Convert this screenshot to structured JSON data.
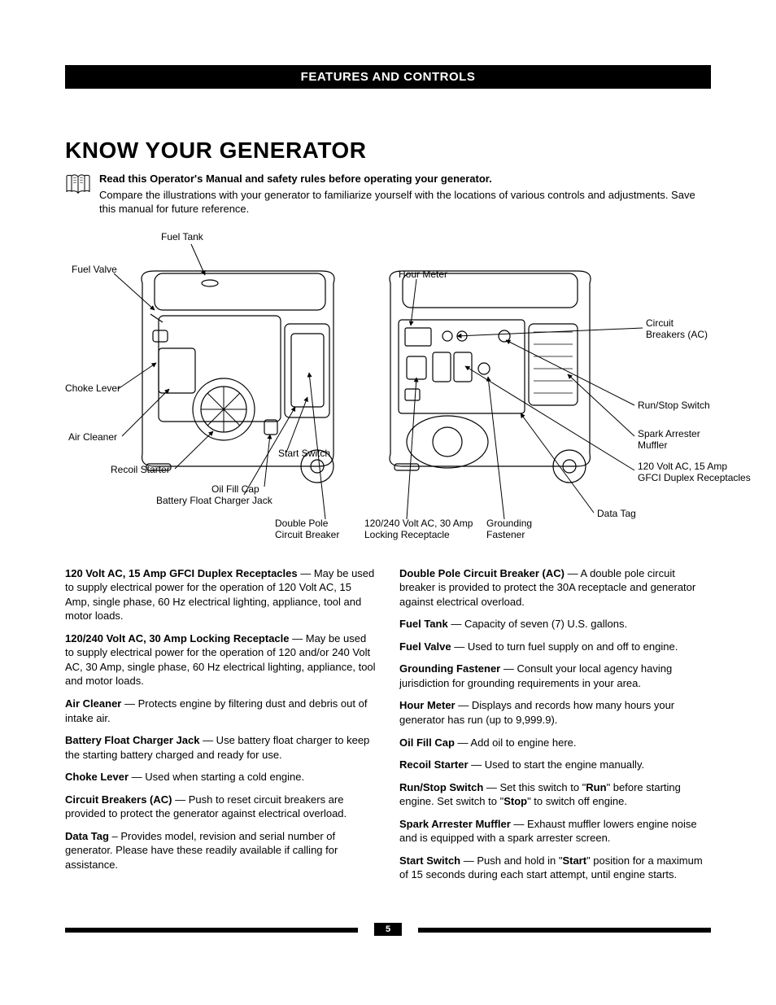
{
  "header": {
    "title": "FEATURES AND CONTROLS"
  },
  "heading": "KNOW YOUR GENERATOR",
  "intro": {
    "bold": "Read this Operator's Manual and safety rules before operating your generator.",
    "body": "Compare the illustrations with your generator to familiarize yourself with the locations of various controls and adjustments. Save this manual for future reference."
  },
  "callouts": {
    "fuel_tank": "Fuel Tank",
    "fuel_valve": "Fuel Valve",
    "choke_lever": "Choke Lever",
    "air_cleaner": "Air Cleaner",
    "recoil_starter": "Recoil Starter",
    "battery_jack": "Battery Float Charger Jack",
    "start_switch": "Start Switch",
    "oil_fill_cap": "Oil Fill Cap",
    "double_pole_breaker_l1": "Double Pole",
    "double_pole_breaker_l2": "Circuit Breaker",
    "hour_meter": "Hour Meter",
    "locking_receptacle_l1": "120/240 Volt AC, 30 Amp",
    "locking_receptacle_l2": "Locking Receptacle",
    "grounding_fastener_l1": "Grounding",
    "grounding_fastener_l2": "Fastener",
    "data_tag": "Data Tag",
    "gfci_l1": "120 Volt AC, 15 Amp",
    "gfci_l2": "GFCI Duplex Receptacles",
    "spark_arrester_l1": "Spark Arrester",
    "spark_arrester_l2": "Muffler",
    "run_stop_switch": "Run/Stop Switch",
    "circuit_breakers_l1": "Circuit",
    "circuit_breakers_l2": "Breakers (AC)"
  },
  "features_left": [
    {
      "term": "120 Volt AC, 15 Amp GFCI Duplex Receptacles",
      "desc": " — May be used to supply electrical power for the operation of 120 Volt AC, 15 Amp, single phase, 60 Hz electrical lighting, appliance, tool and motor loads."
    },
    {
      "term": "120/240 Volt AC, 30 Amp Locking Receptacle",
      "desc": " — May be used to supply electrical power for the operation of 120 and/or 240 Volt AC, 30 Amp, single phase, 60 Hz electrical lighting, appliance, tool and motor loads."
    },
    {
      "term": "Air Cleaner",
      "desc": " — Protects engine by filtering dust and debris out of intake air."
    },
    {
      "term": "Battery Float Charger Jack",
      "desc": " — Use battery float charger to keep the starting battery charged and ready for use."
    },
    {
      "term": "Choke Lever",
      "desc": " — Used when starting a cold engine."
    },
    {
      "term": "Circuit Breakers (AC)",
      "desc": " — Push to reset circuit breakers are provided to protect the generator against electrical overload."
    },
    {
      "term": "Data Tag",
      "desc": " – Provides model, revision and serial number of generator. Please have these readily available if calling for assistance."
    }
  ],
  "features_right": [
    {
      "term": "Double Pole Circuit Breaker (AC)",
      "desc": " — A double pole circuit breaker is provided to protect the 30A receptacle and generator against electrical overload."
    },
    {
      "term": "Fuel Tank",
      "desc": " — Capacity of seven (7) U.S. gallons."
    },
    {
      "term": "Fuel Valve",
      "desc": " — Used to turn fuel supply on and off to engine."
    },
    {
      "term": "Grounding Fastener",
      "desc": " — Consult your local agency having jurisdiction for grounding requirements in your area."
    },
    {
      "term": "Hour Meter",
      "desc": " — Displays and records how many hours your generator has run (up to 9,999.9)."
    },
    {
      "term": "Oil Fill Cap",
      "desc": " — Add oil to engine here."
    },
    {
      "term": "Recoil Starter",
      "desc": " — Used to start the engine manually."
    },
    {
      "term": "Run/Stop Switch",
      "desc_pre": " — Set this switch to \"",
      "bold1": "Run",
      "mid": "\" before starting engine. Set switch to \"",
      "bold2": "Stop",
      "desc_post": "\" to switch off engine."
    },
    {
      "term": "Spark Arrester Muffler",
      "desc": " — Exhaust muffler lowers engine noise and is equipped with a spark arrester screen."
    },
    {
      "term": "Start Switch",
      "desc_pre": " — Push and hold in \"",
      "bold1": "Start",
      "desc_post": "\" position for a maximum of 15 seconds during each start attempt, until engine starts."
    }
  ],
  "page_number": "5",
  "colors": {
    "black": "#000000",
    "white": "#ffffff"
  }
}
